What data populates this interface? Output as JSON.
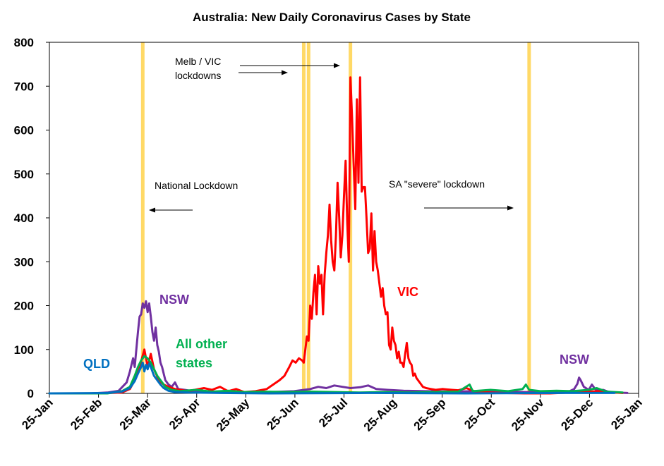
{
  "chart_data": {
    "type": "line",
    "title": "Australia: New Daily Coronavirus Cases by State",
    "ylim": [
      0,
      800
    ],
    "yticks": [
      "0",
      "100",
      "200",
      "300",
      "400",
      "500",
      "600",
      "700",
      "800"
    ],
    "xlim": [
      "2020-01-25",
      "2021-01-25"
    ],
    "xticks": [
      "25-Jan",
      "25-Feb",
      "25-Mar",
      "25-Apr",
      "25-May",
      "25-Jun",
      "25-Jul",
      "25-Aug",
      "25-Sep",
      "25-Oct",
      "25-Nov",
      "25-Dec",
      "25-Jan"
    ],
    "lockdown_dates": [
      "2020-03-23",
      "2020-07-01",
      "2020-07-04",
      "2020-07-30",
      "2020-11-18"
    ],
    "lockdown_color": "#FFD966",
    "annotations": {
      "melb_vic": [
        "Melb / VIC",
        "lockdowns"
      ],
      "national": "National Lockdown",
      "sa": "SA \"severe\" lockdown"
    },
    "series_labels": {
      "vic": "VIC",
      "nsw_early": "NSW",
      "nsw_late": "NSW",
      "qld": "QLD",
      "other": [
        "All other",
        "states"
      ]
    },
    "series": [
      {
        "name": "NSW",
        "color": "#7030A0",
        "points": [
          [
            "2020-01-25",
            0
          ],
          [
            "2020-02-20",
            0
          ],
          [
            "2020-03-01",
            2
          ],
          [
            "2020-03-08",
            6
          ],
          [
            "2020-03-13",
            25
          ],
          [
            "2020-03-15",
            50
          ],
          [
            "2020-03-17",
            80
          ],
          [
            "2020-03-18",
            60
          ],
          [
            "2020-03-20",
            140
          ],
          [
            "2020-03-21",
            175
          ],
          [
            "2020-03-22",
            180
          ],
          [
            "2020-03-23",
            205
          ],
          [
            "2020-03-24",
            195
          ],
          [
            "2020-03-25",
            210
          ],
          [
            "2020-03-26",
            185
          ],
          [
            "2020-03-27",
            205
          ],
          [
            "2020-03-28",
            175
          ],
          [
            "2020-03-29",
            140
          ],
          [
            "2020-03-30",
            120
          ],
          [
            "2020-03-31",
            150
          ],
          [
            "2020-04-01",
            110
          ],
          [
            "2020-04-02",
            95
          ],
          [
            "2020-04-03",
            70
          ],
          [
            "2020-04-04",
            60
          ],
          [
            "2020-04-05",
            45
          ],
          [
            "2020-04-06",
            30
          ],
          [
            "2020-04-08",
            20
          ],
          [
            "2020-04-10",
            15
          ],
          [
            "2020-04-12",
            25
          ],
          [
            "2020-04-14",
            10
          ],
          [
            "2020-04-18",
            8
          ],
          [
            "2020-04-25",
            4
          ],
          [
            "2020-05-10",
            3
          ],
          [
            "2020-05-25",
            2
          ],
          [
            "2020-06-10",
            3
          ],
          [
            "2020-06-25",
            5
          ],
          [
            "2020-07-05",
            10
          ],
          [
            "2020-07-10",
            15
          ],
          [
            "2020-07-15",
            12
          ],
          [
            "2020-07-20",
            18
          ],
          [
            "2020-07-25",
            15
          ],
          [
            "2020-07-30",
            12
          ],
          [
            "2020-08-05",
            14
          ],
          [
            "2020-08-10",
            18
          ],
          [
            "2020-08-15",
            10
          ],
          [
            "2020-08-22",
            8
          ],
          [
            "2020-09-01",
            6
          ],
          [
            "2020-09-15",
            5
          ],
          [
            "2020-10-01",
            4
          ],
          [
            "2020-10-15",
            5
          ],
          [
            "2020-11-01",
            4
          ],
          [
            "2020-11-15",
            3
          ],
          [
            "2020-12-01",
            3
          ],
          [
            "2020-12-12",
            3
          ],
          [
            "2020-12-16",
            10
          ],
          [
            "2020-12-18",
            22
          ],
          [
            "2020-12-19",
            36
          ],
          [
            "2020-12-20",
            30
          ],
          [
            "2020-12-22",
            15
          ],
          [
            "2020-12-25",
            8
          ],
          [
            "2020-12-27",
            20
          ],
          [
            "2020-12-29",
            10
          ],
          [
            "2020-12-31",
            6
          ],
          [
            "2021-01-03",
            8
          ],
          [
            "2021-01-06",
            4
          ],
          [
            "2021-01-10",
            2
          ],
          [
            "2021-01-18",
            1
          ]
        ]
      },
      {
        "name": "VIC",
        "color": "#FF0000",
        "points": [
          [
            "2020-01-25",
            0
          ],
          [
            "2020-02-25",
            0
          ],
          [
            "2020-03-10",
            2
          ],
          [
            "2020-03-15",
            10
          ],
          [
            "2020-03-18",
            30
          ],
          [
            "2020-03-21",
            60
          ],
          [
            "2020-03-24",
            100
          ],
          [
            "2020-03-26",
            60
          ],
          [
            "2020-03-28",
            90
          ],
          [
            "2020-03-30",
            55
          ],
          [
            "2020-04-02",
            30
          ],
          [
            "2020-04-05",
            20
          ],
          [
            "2020-04-08",
            15
          ],
          [
            "2020-04-12",
            10
          ],
          [
            "2020-04-20",
            5
          ],
          [
            "2020-04-30",
            12
          ],
          [
            "2020-05-05",
            8
          ],
          [
            "2020-05-10",
            15
          ],
          [
            "2020-05-15",
            5
          ],
          [
            "2020-05-20",
            10
          ],
          [
            "2020-05-25",
            3
          ],
          [
            "2020-06-01",
            5
          ],
          [
            "2020-06-08",
            10
          ],
          [
            "2020-06-12",
            20
          ],
          [
            "2020-06-16",
            30
          ],
          [
            "2020-06-19",
            40
          ],
          [
            "2020-06-22",
            60
          ],
          [
            "2020-06-24",
            75
          ],
          [
            "2020-06-26",
            70
          ],
          [
            "2020-06-28",
            80
          ],
          [
            "2020-06-30",
            75
          ],
          [
            "2020-07-01",
            70
          ],
          [
            "2020-07-02",
            100
          ],
          [
            "2020-07-03",
            130
          ],
          [
            "2020-07-04",
            120
          ],
          [
            "2020-07-05",
            200
          ],
          [
            "2020-07-06",
            170
          ],
          [
            "2020-07-07",
            230
          ],
          [
            "2020-07-08",
            270
          ],
          [
            "2020-07-09",
            180
          ],
          [
            "2020-07-10",
            290
          ],
          [
            "2020-07-11",
            250
          ],
          [
            "2020-07-12",
            270
          ],
          [
            "2020-07-13",
            180
          ],
          [
            "2020-07-14",
            270
          ],
          [
            "2020-07-15",
            320
          ],
          [
            "2020-07-16",
            360
          ],
          [
            "2020-07-17",
            430
          ],
          [
            "2020-07-18",
            350
          ],
          [
            "2020-07-19",
            300
          ],
          [
            "2020-07-20",
            280
          ],
          [
            "2020-07-21",
            360
          ],
          [
            "2020-07-22",
            480
          ],
          [
            "2020-07-23",
            400
          ],
          [
            "2020-07-24",
            310
          ],
          [
            "2020-07-25",
            360
          ],
          [
            "2020-07-26",
            450
          ],
          [
            "2020-07-27",
            530
          ],
          [
            "2020-07-28",
            390
          ],
          [
            "2020-07-29",
            300
          ],
          [
            "2020-07-30",
            720
          ],
          [
            "2020-07-31",
            630
          ],
          [
            "2020-08-01",
            520
          ],
          [
            "2020-08-02",
            420
          ],
          [
            "2020-08-03",
            670
          ],
          [
            "2020-08-04",
            480
          ],
          [
            "2020-08-05",
            720
          ],
          [
            "2020-08-06",
            460
          ],
          [
            "2020-08-07",
            470
          ],
          [
            "2020-08-08",
            470
          ],
          [
            "2020-08-09",
            400
          ],
          [
            "2020-08-10",
            320
          ],
          [
            "2020-08-11",
            330
          ],
          [
            "2020-08-12",
            410
          ],
          [
            "2020-08-13",
            280
          ],
          [
            "2020-08-14",
            370
          ],
          [
            "2020-08-15",
            300
          ],
          [
            "2020-08-16",
            280
          ],
          [
            "2020-08-17",
            250
          ],
          [
            "2020-08-18",
            220
          ],
          [
            "2020-08-19",
            240
          ],
          [
            "2020-08-20",
            200
          ],
          [
            "2020-08-21",
            180
          ],
          [
            "2020-08-22",
            185
          ],
          [
            "2020-08-23",
            110
          ],
          [
            "2020-08-24",
            100
          ],
          [
            "2020-08-25",
            150
          ],
          [
            "2020-08-26",
            120
          ],
          [
            "2020-08-27",
            110
          ],
          [
            "2020-08-28",
            80
          ],
          [
            "2020-08-29",
            95
          ],
          [
            "2020-08-30",
            70
          ],
          [
            "2020-08-31",
            70
          ],
          [
            "2020-09-01",
            60
          ],
          [
            "2020-09-02",
            90
          ],
          [
            "2020-09-03",
            115
          ],
          [
            "2020-09-04",
            80
          ],
          [
            "2020-09-05",
            70
          ],
          [
            "2020-09-06",
            65
          ],
          [
            "2020-09-07",
            40
          ],
          [
            "2020-09-08",
            45
          ],
          [
            "2020-09-09",
            35
          ],
          [
            "2020-09-10",
            30
          ],
          [
            "2020-09-11",
            25
          ],
          [
            "2020-09-12",
            20
          ],
          [
            "2020-09-13",
            15
          ],
          [
            "2020-09-15",
            12
          ],
          [
            "2020-09-18",
            10
          ],
          [
            "2020-09-21",
            8
          ],
          [
            "2020-09-25",
            10
          ],
          [
            "2020-10-01",
            8
          ],
          [
            "2020-10-05",
            7
          ],
          [
            "2020-10-10",
            12
          ],
          [
            "2020-10-15",
            5
          ],
          [
            "2020-10-20",
            3
          ],
          [
            "2020-10-25",
            2
          ],
          [
            "2020-11-01",
            1
          ],
          [
            "2020-11-15",
            0
          ],
          [
            "2020-12-01",
            0
          ],
          [
            "2020-12-31",
            5
          ],
          [
            "2021-01-05",
            3
          ],
          [
            "2021-01-15",
            1
          ]
        ]
      },
      {
        "name": "All other states",
        "color": "#00B050",
        "points": [
          [
            "2020-01-25",
            0
          ],
          [
            "2020-03-01",
            0
          ],
          [
            "2020-03-10",
            5
          ],
          [
            "2020-03-15",
            15
          ],
          [
            "2020-03-18",
            40
          ],
          [
            "2020-03-20",
            60
          ],
          [
            "2020-03-22",
            75
          ],
          [
            "2020-03-24",
            85
          ],
          [
            "2020-03-26",
            80
          ],
          [
            "2020-03-28",
            70
          ],
          [
            "2020-03-30",
            55
          ],
          [
            "2020-04-01",
            40
          ],
          [
            "2020-04-03",
            30
          ],
          [
            "2020-04-06",
            15
          ],
          [
            "2020-04-10",
            8
          ],
          [
            "2020-04-15",
            5
          ],
          [
            "2020-04-25",
            8
          ],
          [
            "2020-05-05",
            4
          ],
          [
            "2020-05-15",
            6
          ],
          [
            "2020-05-25",
            3
          ],
          [
            "2020-06-05",
            4
          ],
          [
            "2020-06-20",
            3
          ],
          [
            "2020-07-05",
            4
          ],
          [
            "2020-07-20",
            3
          ],
          [
            "2020-08-05",
            2
          ],
          [
            "2020-08-20",
            3
          ],
          [
            "2020-09-05",
            2
          ],
          [
            "2020-09-20",
            3
          ],
          [
            "2020-10-05",
            4
          ],
          [
            "2020-10-12",
            20
          ],
          [
            "2020-10-14",
            5
          ],
          [
            "2020-10-25",
            8
          ],
          [
            "2020-11-05",
            5
          ],
          [
            "2020-11-14",
            10
          ],
          [
            "2020-11-16",
            20
          ],
          [
            "2020-11-18",
            8
          ],
          [
            "2020-11-25",
            5
          ],
          [
            "2020-12-05",
            6
          ],
          [
            "2020-12-15",
            5
          ],
          [
            "2020-12-25",
            8
          ],
          [
            "2020-12-30",
            12
          ],
          [
            "2021-01-05",
            4
          ],
          [
            "2021-01-15",
            2
          ]
        ]
      },
      {
        "name": "QLD",
        "color": "#0070C0",
        "points": [
          [
            "2020-01-25",
            0
          ],
          [
            "2020-03-01",
            1
          ],
          [
            "2020-03-10",
            4
          ],
          [
            "2020-03-15",
            12
          ],
          [
            "2020-03-18",
            28
          ],
          [
            "2020-03-20",
            45
          ],
          [
            "2020-03-22",
            60
          ],
          [
            "2020-03-23",
            70
          ],
          [
            "2020-03-24",
            50
          ],
          [
            "2020-03-25",
            65
          ],
          [
            "2020-03-26",
            55
          ],
          [
            "2020-03-27",
            68
          ],
          [
            "2020-03-28",
            60
          ],
          [
            "2020-03-29",
            50
          ],
          [
            "2020-03-30",
            40
          ],
          [
            "2020-04-01",
            30
          ],
          [
            "2020-04-03",
            20
          ],
          [
            "2020-04-05",
            12
          ],
          [
            "2020-04-08",
            6
          ],
          [
            "2020-04-12",
            3
          ],
          [
            "2020-04-20",
            2
          ],
          [
            "2020-05-10",
            1
          ],
          [
            "2020-06-10",
            0
          ],
          [
            "2020-08-10",
            1
          ],
          [
            "2020-10-10",
            0
          ],
          [
            "2020-12-10",
            1
          ],
          [
            "2021-01-10",
            1
          ]
        ]
      }
    ]
  }
}
